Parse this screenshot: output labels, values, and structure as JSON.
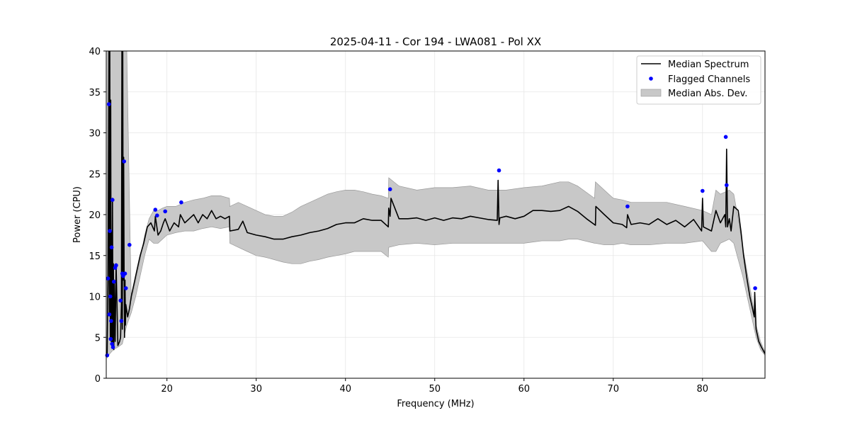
{
  "chart_data": {
    "type": "line",
    "title": "2025-04-11 - Cor 194 - LWA081 - Pol XX",
    "xlabel": "Frequency (MHz)",
    "ylabel": "Power (CPU)",
    "xlim": [
      13.2,
      87.0
    ],
    "ylim": [
      0,
      40
    ],
    "xticks": [
      20,
      30,
      40,
      50,
      60,
      70,
      80
    ],
    "yticks": [
      0,
      5,
      10,
      15,
      20,
      25,
      30,
      35,
      40
    ],
    "grid": true,
    "legend_position": "top-right",
    "series": [
      {
        "name": "Median Spectrum",
        "kind": "line",
        "color": "#000000",
        "x": [
          13.3,
          13.4,
          13.5,
          13.55,
          13.6,
          13.65,
          13.7,
          13.75,
          13.8,
          13.85,
          13.9,
          13.95,
          14.0,
          14.05,
          14.1,
          14.2,
          14.3,
          14.5,
          14.7,
          14.8,
          14.9,
          14.95,
          15.0,
          15.05,
          15.1,
          15.15,
          15.2,
          15.25,
          15.3,
          15.35,
          15.4,
          15.6,
          15.8,
          16.0,
          16.3,
          16.6,
          17.0,
          17.4,
          17.8,
          18.2,
          18.6,
          18.7,
          19.0,
          19.3,
          19.6,
          19.8,
          20.3,
          20.8,
          21.3,
          21.5,
          22.0,
          22.5,
          23.0,
          23.5,
          24.0,
          24.5,
          25.0,
          25.5,
          26.0,
          26.5,
          27.0,
          27.05,
          28.0,
          28.5,
          29.0,
          30.0,
          31.0,
          32.0,
          33.0,
          34.0,
          35.0,
          36.0,
          37.0,
          38.0,
          39.0,
          40.0,
          41.0,
          42.0,
          43.0,
          44.0,
          44.8,
          44.85,
          45.0,
          45.1,
          46.0,
          47.0,
          48.0,
          49.0,
          50.0,
          51.0,
          52.0,
          53.0,
          54.0,
          55.0,
          56.0,
          57.0,
          57.1,
          57.2,
          57.3,
          58.0,
          59.0,
          60.0,
          61.0,
          62.0,
          63.0,
          64.0,
          65.0,
          66.0,
          67.0,
          68.0,
          68.05,
          69.0,
          70.0,
          71.0,
          71.5,
          71.6,
          72.0,
          73.0,
          74.0,
          75.0,
          76.0,
          77.0,
          78.0,
          79.0,
          79.9,
          80.0,
          80.1,
          81.0,
          81.5,
          82.0,
          82.5,
          82.6,
          82.7,
          82.8,
          83.0,
          83.2,
          83.5,
          84.0,
          84.3,
          84.6,
          85.0,
          85.3,
          85.6,
          85.8,
          85.85,
          86.0,
          86.3,
          86.6,
          87.0
        ],
        "values": [
          3.0,
          12.0,
          40.0,
          8.0,
          40.0,
          5.0,
          34.0,
          4.5,
          18.0,
          4.0,
          22.0,
          4.0,
          14.0,
          3.5,
          12.0,
          4.5,
          14.0,
          4.0,
          4.5,
          5.0,
          9.0,
          40.0,
          6.0,
          40.0,
          12.0,
          27.0,
          13.0,
          5.0,
          12.0,
          6.5,
          9.0,
          7.5,
          8.5,
          10.0,
          11.5,
          13.0,
          15.0,
          16.5,
          18.5,
          19.0,
          18.0,
          19.8,
          17.5,
          18.0,
          19.0,
          19.5,
          18.0,
          19.0,
          18.5,
          20.0,
          19.0,
          19.5,
          20.0,
          19.0,
          20.0,
          19.5,
          20.5,
          19.5,
          19.8,
          19.5,
          19.8,
          18.0,
          18.2,
          19.2,
          17.8,
          17.5,
          17.3,
          17.0,
          17.0,
          17.3,
          17.5,
          17.8,
          18.0,
          18.3,
          18.8,
          19.0,
          19.0,
          19.5,
          19.3,
          19.3,
          18.5,
          20.8,
          19.8,
          22.0,
          19.5,
          19.5,
          19.6,
          19.3,
          19.6,
          19.3,
          19.6,
          19.5,
          19.8,
          19.6,
          19.4,
          19.3,
          24.2,
          18.8,
          19.6,
          19.8,
          19.5,
          19.8,
          20.5,
          20.5,
          20.4,
          20.5,
          21.0,
          20.4,
          19.5,
          18.7,
          21.0,
          20.0,
          19.0,
          18.8,
          18.4,
          20.0,
          18.8,
          19.0,
          18.8,
          19.5,
          18.8,
          19.3,
          18.5,
          19.4,
          18.0,
          22.0,
          18.5,
          18.0,
          20.5,
          19.0,
          20.0,
          18.5,
          28.0,
          18.5,
          19.5,
          18.0,
          21.0,
          20.5,
          18.0,
          15.0,
          12.0,
          10.0,
          8.5,
          7.5,
          10.5,
          6.0,
          4.5,
          3.8,
          3.0
        ]
      },
      {
        "name": "Flagged Channels",
        "kind": "scatter",
        "color": "#0000ff",
        "x": [
          13.3,
          13.4,
          13.5,
          13.55,
          13.6,
          13.65,
          13.7,
          13.75,
          13.8,
          13.85,
          13.9,
          13.95,
          14.05,
          14.2,
          14.3,
          14.8,
          14.9,
          15.0,
          15.1,
          15.2,
          15.3,
          15.4,
          15.8,
          18.7,
          18.9,
          19.8,
          21.6,
          45.0,
          57.2,
          71.6,
          80.0,
          82.6,
          82.7,
          85.9
        ],
        "values": [
          2.8,
          12.2,
          33.5,
          7.8,
          18.0,
          10.0,
          4.8,
          7.0,
          16.0,
          4.2,
          21.8,
          3.8,
          11.8,
          13.5,
          13.8,
          9.5,
          7.0,
          12.8,
          12.5,
          26.5,
          12.8,
          11.0,
          16.3,
          20.6,
          19.9,
          20.4,
          21.5,
          23.1,
          25.4,
          21.0,
          22.9,
          29.5,
          23.6,
          11.0
        ]
      },
      {
        "name": "Median Abs. Dev.",
        "kind": "band",
        "color": "#c8c8c8",
        "x": [
          13.3,
          13.6,
          14.0,
          14.5,
          15.0,
          15.5,
          16.0,
          16.5,
          17.0,
          17.5,
          18.0,
          18.5,
          19.0,
          19.5,
          20.0,
          21.0,
          22.0,
          23.0,
          24.0,
          25.0,
          26.0,
          27.0,
          27.05,
          28.0,
          29.0,
          30.0,
          31.0,
          32.0,
          33.0,
          34.0,
          35.0,
          36.0,
          37.0,
          38.0,
          39.0,
          40.0,
          41.0,
          42.0,
          43.0,
          44.0,
          44.8,
          44.85,
          46.0,
          48.0,
          50.0,
          52.0,
          54.0,
          56.0,
          57.0,
          58.0,
          60.0,
          62.0,
          64.0,
          65.0,
          66.0,
          67.9,
          68.0,
          69.0,
          70.0,
          71.0,
          72.0,
          74.0,
          76.0,
          78.0,
          80.0,
          81.0,
          81.5,
          82.0,
          83.0,
          83.5,
          84.0,
          84.5,
          85.0,
          85.5,
          86.0,
          86.5,
          87.0
        ],
        "lower": [
          2.5,
          3.0,
          3.5,
          3.8,
          4.2,
          6.5,
          8.0,
          10.0,
          12.5,
          15.0,
          17.0,
          16.5,
          16.5,
          17.0,
          17.5,
          17.8,
          18.0,
          18.0,
          18.3,
          18.5,
          18.3,
          18.5,
          16.5,
          16.0,
          15.5,
          15.0,
          14.8,
          14.5,
          14.2,
          14.0,
          14.0,
          14.3,
          14.5,
          14.8,
          15.0,
          15.2,
          15.5,
          15.5,
          15.5,
          15.5,
          14.8,
          16.0,
          16.3,
          16.5,
          16.3,
          16.5,
          16.5,
          16.5,
          16.5,
          16.5,
          16.5,
          16.8,
          16.8,
          17.0,
          17.0,
          16.5,
          16.5,
          16.3,
          16.3,
          16.5,
          16.3,
          16.3,
          16.5,
          16.5,
          16.8,
          15.5,
          15.5,
          16.5,
          17.0,
          16.5,
          14.5,
          12.5,
          10.0,
          7.5,
          5.0,
          3.5,
          2.8
        ],
        "upper": [
          40.0,
          40.0,
          40.0,
          40.0,
          40.0,
          40.0,
          9.5,
          12.0,
          14.5,
          17.5,
          19.5,
          20.5,
          20.5,
          20.8,
          21.0,
          21.0,
          21.5,
          21.8,
          22.0,
          22.3,
          22.3,
          22.0,
          21.0,
          21.5,
          21.0,
          20.5,
          20.0,
          19.8,
          19.8,
          20.3,
          21.0,
          21.5,
          22.0,
          22.5,
          22.8,
          23.0,
          23.0,
          22.8,
          22.5,
          22.3,
          22.0,
          24.5,
          23.5,
          23.0,
          23.3,
          23.3,
          23.5,
          23.0,
          23.0,
          23.0,
          23.3,
          23.5,
          24.0,
          24.0,
          23.5,
          22.0,
          24.0,
          23.0,
          22.0,
          21.8,
          21.5,
          21.5,
          21.5,
          21.0,
          20.5,
          20.0,
          23.0,
          22.5,
          23.0,
          22.5,
          19.5,
          16.0,
          13.0,
          10.0,
          6.5,
          4.5,
          3.2
        ]
      }
    ]
  }
}
